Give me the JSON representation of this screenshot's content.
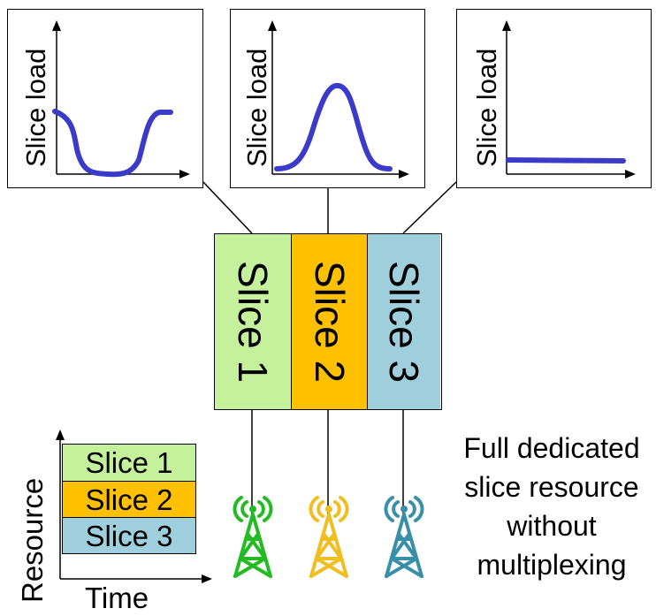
{
  "panels": [
    {
      "ylabel": "Slice load",
      "curve": "dip"
    },
    {
      "ylabel": "Slice load",
      "curve": "peak"
    },
    {
      "ylabel": "Slice load",
      "curve": "flat"
    }
  ],
  "colors": {
    "curve": "#3b3bc9",
    "slice1": "#c5f19c",
    "slice2": "#ffc000",
    "slice3": "#9fcfdc",
    "tower1": "#22bb22",
    "tower2": "#f0be20",
    "tower3": "#3a8fa8"
  },
  "slices": [
    "Slice 1",
    "Slice 2",
    "Slice 3"
  ],
  "stack": {
    "rows": [
      "Slice 1",
      "Slice 2",
      "Slice 3"
    ],
    "y_label": "Resource",
    "x_label": "Time"
  },
  "note": [
    "Full dedicated",
    "slice resource",
    "without",
    "multiplexing"
  ],
  "towers": [
    {
      "icon": "cell-tower-icon",
      "color_key": "tower1"
    },
    {
      "icon": "cell-tower-icon",
      "color_key": "tower2"
    },
    {
      "icon": "cell-tower-icon",
      "color_key": "tower3"
    }
  ]
}
